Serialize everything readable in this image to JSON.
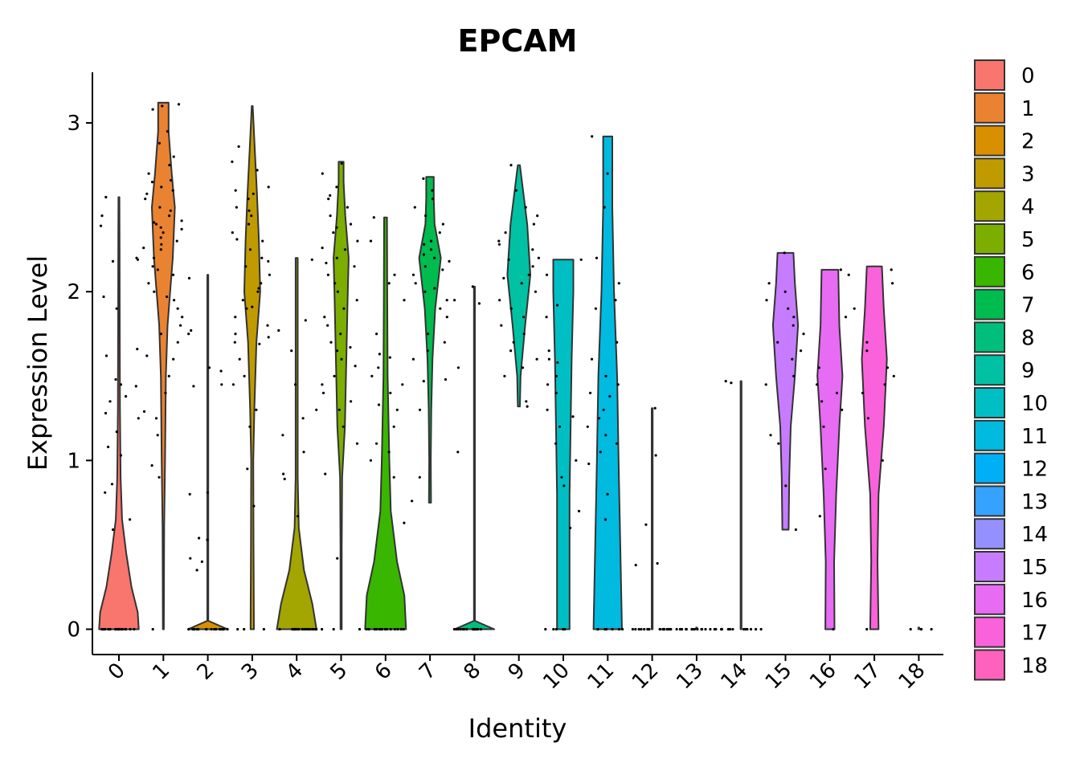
{
  "chart_data": {
    "type": "violin",
    "title": "EPCAM",
    "xlabel": "Identity",
    "ylabel": "Expression Level",
    "ylim": [
      -0.15,
      3.3
    ],
    "yticks": [
      0,
      1,
      2,
      3
    ],
    "grid": false,
    "legend_position": "right",
    "categories": [
      "0",
      "1",
      "2",
      "3",
      "4",
      "5",
      "6",
      "7",
      "8",
      "9",
      "10",
      "11",
      "12",
      "13",
      "14",
      "15",
      "16",
      "17",
      "18"
    ],
    "colors": [
      "#F8766D",
      "#EA8331",
      "#D89000",
      "#C09B00",
      "#A3A500",
      "#7CAE00",
      "#39B600",
      "#00BB4E",
      "#00BF7D",
      "#00C1A3",
      "#00BFC4",
      "#00BAE0",
      "#00B0F6",
      "#35A2FF",
      "#9590FF",
      "#C77CFF",
      "#E76BF3",
      "#FA62DB",
      "#FF62BC"
    ],
    "violins": [
      {
        "min": 0,
        "max": 2.56,
        "profile": [
          [
            0,
            0.95
          ],
          [
            0.1,
            0.9
          ],
          [
            0.25,
            0.6
          ],
          [
            0.45,
            0.35
          ],
          [
            0.65,
            0.15
          ],
          [
            0.9,
            0.08
          ],
          [
            1.3,
            0.05
          ],
          [
            1.8,
            0.04
          ],
          [
            2.3,
            0.03
          ],
          [
            2.56,
            0
          ]
        ]
      },
      {
        "min": 0,
        "max": 3.12,
        "profile": [
          [
            0,
            0.02
          ],
          [
            0.6,
            0.04
          ],
          [
            1.0,
            0.08
          ],
          [
            1.5,
            0.12
          ],
          [
            1.8,
            0.2
          ],
          [
            2.2,
            0.45
          ],
          [
            2.5,
            0.55
          ],
          [
            2.7,
            0.4
          ],
          [
            2.95,
            0.25
          ],
          [
            3.12,
            0.25
          ]
        ]
      },
      {
        "min": 0,
        "max": 2.1,
        "profile": [
          [
            0,
            0.95
          ],
          [
            0.05,
            0.02
          ],
          [
            0.5,
            0.015
          ],
          [
            1.0,
            0.015
          ],
          [
            1.5,
            0.012
          ],
          [
            2.1,
            0
          ]
        ]
      },
      {
        "min": 0,
        "max": 3.1,
        "profile": [
          [
            0,
            0.08
          ],
          [
            0.5,
            0.06
          ],
          [
            1.0,
            0.05
          ],
          [
            1.3,
            0.1
          ],
          [
            1.7,
            0.2
          ],
          [
            2.0,
            0.38
          ],
          [
            2.3,
            0.32
          ],
          [
            2.6,
            0.22
          ],
          [
            2.85,
            0.12
          ],
          [
            3.1,
            0
          ]
        ]
      },
      {
        "min": 0,
        "max": 2.2,
        "profile": [
          [
            0,
            0.95
          ],
          [
            0.15,
            0.75
          ],
          [
            0.35,
            0.35
          ],
          [
            0.6,
            0.1
          ],
          [
            0.9,
            0.05
          ],
          [
            1.4,
            0.05
          ],
          [
            1.9,
            0.05
          ],
          [
            2.2,
            0.05
          ]
        ]
      },
      {
        "min": 0,
        "max": 2.77,
        "profile": [
          [
            0,
            0.03
          ],
          [
            0.5,
            0.03
          ],
          [
            0.9,
            0.05
          ],
          [
            1.2,
            0.18
          ],
          [
            1.6,
            0.25
          ],
          [
            2.0,
            0.32
          ],
          [
            2.2,
            0.36
          ],
          [
            2.45,
            0.2
          ],
          [
            2.65,
            0.12
          ],
          [
            2.77,
            0.12
          ]
        ]
      },
      {
        "min": 0,
        "max": 2.44,
        "profile": [
          [
            0,
            0.98
          ],
          [
            0.2,
            0.9
          ],
          [
            0.4,
            0.55
          ],
          [
            0.7,
            0.25
          ],
          [
            1.0,
            0.18
          ],
          [
            1.5,
            0.1
          ],
          [
            2.0,
            0.08
          ],
          [
            2.44,
            0.07
          ]
        ]
      },
      {
        "min": 0.75,
        "max": 2.68,
        "profile": [
          [
            0.75,
            0.05
          ],
          [
            1.0,
            0.04
          ],
          [
            1.3,
            0.06
          ],
          [
            1.6,
            0.12
          ],
          [
            1.9,
            0.25
          ],
          [
            2.2,
            0.52
          ],
          [
            2.4,
            0.22
          ],
          [
            2.55,
            0.18
          ],
          [
            2.68,
            0.18
          ]
        ]
      },
      {
        "min": 0,
        "max": 2.03,
        "profile": [
          [
            0,
            0.95
          ],
          [
            0.05,
            0.02
          ],
          [
            1.0,
            0.015
          ],
          [
            2.03,
            0.01
          ]
        ]
      },
      {
        "min": 1.32,
        "max": 2.75,
        "profile": [
          [
            1.32,
            0.05
          ],
          [
            1.5,
            0.08
          ],
          [
            1.8,
            0.3
          ],
          [
            2.1,
            0.55
          ],
          [
            2.4,
            0.4
          ],
          [
            2.6,
            0.2
          ],
          [
            2.75,
            0.05
          ]
        ]
      },
      {
        "min": 0,
        "max": 2.19,
        "profile": [
          [
            0,
            0.3
          ],
          [
            0.8,
            0.3
          ],
          [
            1.2,
            0.35
          ],
          [
            1.6,
            0.4
          ],
          [
            2.0,
            0.48
          ],
          [
            2.19,
            0.48
          ]
        ]
      },
      {
        "min": 0,
        "max": 2.92,
        "profile": [
          [
            0,
            0.68
          ],
          [
            0.5,
            0.6
          ],
          [
            1.0,
            0.52
          ],
          [
            1.5,
            0.45
          ],
          [
            2.0,
            0.3
          ],
          [
            2.5,
            0.22
          ],
          [
            2.92,
            0.22
          ]
        ]
      },
      {
        "min": 0,
        "max": 1.31,
        "profile": [
          [
            0,
            0.02
          ],
          [
            0.5,
            0.015
          ],
          [
            1.31,
            0.01
          ]
        ]
      },
      {
        "min": 0,
        "max": 0.01,
        "profile": [
          [
            0,
            0.01
          ],
          [
            0.01,
            0
          ]
        ]
      },
      {
        "min": 0,
        "max": 1.47,
        "profile": [
          [
            0,
            0.02
          ],
          [
            0.7,
            0.015
          ],
          [
            1.47,
            0.01
          ]
        ]
      },
      {
        "min": 0.59,
        "max": 2.23,
        "profile": [
          [
            0.59,
            0.15
          ],
          [
            0.9,
            0.18
          ],
          [
            1.2,
            0.25
          ],
          [
            1.5,
            0.45
          ],
          [
            1.8,
            0.6
          ],
          [
            2.05,
            0.45
          ],
          [
            2.23,
            0.38
          ]
        ]
      },
      {
        "min": 0,
        "max": 2.13,
        "profile": [
          [
            0,
            0.22
          ],
          [
            0.4,
            0.2
          ],
          [
            0.8,
            0.3
          ],
          [
            1.2,
            0.45
          ],
          [
            1.5,
            0.6
          ],
          [
            1.8,
            0.45
          ],
          [
            2.13,
            0.4
          ]
        ]
      },
      {
        "min": 0,
        "max": 2.15,
        "profile": [
          [
            0,
            0.2
          ],
          [
            0.4,
            0.15
          ],
          [
            0.8,
            0.2
          ],
          [
            1.2,
            0.45
          ],
          [
            1.6,
            0.6
          ],
          [
            1.9,
            0.45
          ],
          [
            2.15,
            0.36
          ]
        ]
      },
      {
        "min": 0,
        "max": 0.01,
        "profile": [
          [
            0,
            0.01
          ],
          [
            0.01,
            0
          ]
        ]
      }
    ],
    "points": [
      {
        "zeros": 20,
        "values": [
          2.56,
          2.39,
          2.2,
          2.19,
          1.97,
          1.9,
          1.66,
          1.62,
          1.48,
          1.45,
          1.38,
          1.35,
          1.28,
          1.25,
          1.17,
          1.08,
          1.03,
          0.86,
          0.81,
          0.65,
          0.59,
          2.18,
          2.45,
          1.44
        ]
      },
      {
        "zeros": 1,
        "values": [
          3.11,
          3.1,
          3.08,
          2.95,
          2.88,
          2.8,
          2.75,
          2.7,
          2.65,
          2.62,
          2.58,
          2.55,
          2.5,
          2.48,
          2.45,
          2.42,
          2.4,
          2.38,
          2.35,
          2.32,
          2.3,
          2.28,
          2.25,
          2.2,
          2.15,
          2.1,
          2.05,
          2.0,
          1.95,
          1.9,
          1.85,
          1.8,
          1.7,
          1.6,
          1.5,
          1.4,
          1.29,
          1.25,
          1.15,
          0.97,
          0.9,
          2.66,
          2.6,
          2.41,
          2.37,
          2.26,
          2.13,
          1.97,
          1.75,
          1.62
        ]
      },
      {
        "zeros": 18,
        "values": [
          2.08,
          1.77,
          1.75,
          1.55,
          1.53,
          1.45,
          1.44,
          0.81,
          0.8,
          0.54,
          0.53,
          0.42,
          0.4,
          0.35
        ]
      },
      {
        "zeros": 3,
        "values": [
          2.86,
          2.77,
          2.72,
          2.6,
          2.55,
          2.5,
          2.45,
          2.4,
          2.35,
          2.3,
          2.25,
          2.2,
          2.15,
          2.1,
          2.05,
          2.0,
          1.95,
          1.9,
          1.85,
          1.8,
          1.75,
          1.7,
          1.6,
          1.5,
          1.45,
          1.3,
          1.2,
          0.95,
          0.73,
          2.62,
          2.58,
          2.48,
          2.31,
          2.18,
          2.02,
          1.91,
          1.73,
          1.69
        ]
      },
      {
        "zeros": 22,
        "values": [
          2.19,
          1.83,
          1.77,
          1.65,
          1.45,
          1.3,
          1.25,
          1.15,
          1.05,
          0.92,
          0.89,
          0.67
        ]
      },
      {
        "zeros": 3,
        "values": [
          2.76,
          2.7,
          2.62,
          2.55,
          2.5,
          2.45,
          2.4,
          2.35,
          2.3,
          2.25,
          2.2,
          2.15,
          2.1,
          2.05,
          2.0,
          1.95,
          1.9,
          1.85,
          1.8,
          1.75,
          1.7,
          1.65,
          1.6,
          1.5,
          1.45,
          1.4,
          1.35,
          1.3,
          1.2,
          1.1,
          0.92,
          0.42,
          2.57,
          2.38,
          2.26,
          2.17,
          1.67,
          1.56
        ]
      },
      {
        "zeros": 16,
        "values": [
          2.44,
          2.3,
          2.1,
          2.05,
          1.95,
          1.75,
          1.63,
          1.55,
          1.5,
          1.45,
          1.4,
          1.3,
          1.2,
          1.1,
          1.05,
          1.0,
          0.9,
          0.63,
          1.61,
          1.33
        ]
      },
      {
        "zeros": 0,
        "values": [
          2.67,
          2.6,
          2.55,
          2.5,
          2.45,
          2.4,
          2.35,
          2.3,
          2.25,
          2.2,
          2.15,
          2.1,
          2.05,
          2.0,
          1.95,
          1.9,
          1.85,
          1.75,
          1.7,
          1.65,
          1.6,
          1.48,
          1.47,
          1.3,
          0.9,
          0.76,
          2.28,
          2.22,
          2.18,
          2.13,
          2.02
        ]
      },
      {
        "zeros": 16,
        "values": [
          2.03,
          1.95,
          1.93,
          1.55,
          1.05
        ]
      },
      {
        "zeros": 0,
        "values": [
          2.75,
          2.6,
          2.5,
          2.45,
          2.4,
          2.35,
          2.3,
          2.25,
          2.2,
          2.15,
          2.1,
          2.05,
          2.0,
          1.95,
          1.9,
          1.85,
          1.8,
          1.75,
          1.7,
          1.65,
          1.6,
          1.55,
          1.5,
          1.35,
          1.32,
          2.28,
          2.19,
          2.08
        ]
      },
      {
        "zeros": 6,
        "values": [
          2.19,
          2.1,
          1.92,
          1.85,
          1.65,
          1.6,
          1.5,
          1.45,
          1.4,
          1.3,
          1.2,
          1.1,
          1.0,
          0.9,
          0.85,
          0.7,
          0.6,
          1.58,
          1.26
        ]
      },
      {
        "zeros": 8,
        "values": [
          2.92,
          2.7,
          2.5,
          2.2,
          2.05,
          1.95,
          1.9,
          1.7,
          1.6,
          1.5,
          1.45,
          1.4,
          1.3,
          1.25,
          1.2,
          1.15,
          1.1,
          1.05,
          0.98,
          0.8,
          0.65,
          1.38
        ]
      },
      {
        "zeros": 20,
        "values": [
          1.31,
          1.03,
          0.62,
          0.39,
          0.38
        ]
      },
      {
        "zeros": 18,
        "values": []
      },
      {
        "zeros": 14,
        "values": [
          1.47,
          1.46
        ]
      },
      {
        "zeros": 0,
        "values": [
          2.23,
          2.05,
          2.0,
          1.95,
          1.9,
          1.85,
          1.8,
          1.75,
          1.7,
          1.65,
          1.6,
          1.5,
          1.45,
          1.15,
          1.1,
          0.85,
          0.59
        ]
      },
      {
        "zeros": 1,
        "values": [
          2.13,
          2.1,
          1.85,
          1.55,
          1.45,
          1.4,
          1.35,
          1.3,
          1.2,
          0.95,
          0.67
        ]
      },
      {
        "zeros": 1,
        "values": [
          2.13,
          2.05,
          1.9,
          1.7,
          1.65,
          1.55,
          1.5,
          1.45,
          1.4,
          1.25,
          1.0
        ]
      },
      {
        "zeros": 4,
        "values": []
      }
    ]
  }
}
